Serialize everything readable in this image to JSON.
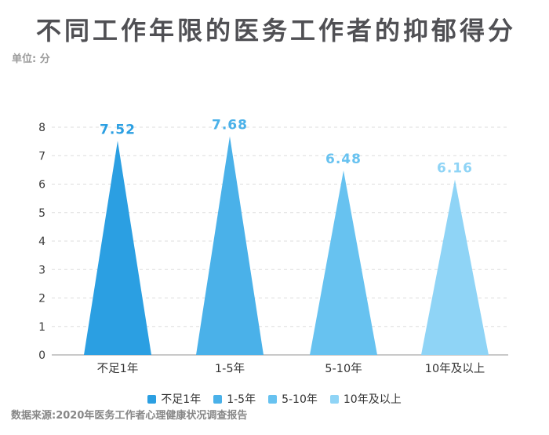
{
  "header": {
    "title": "不同工作年限的医务工作者的抑郁得分",
    "unit_label": "单位: 分"
  },
  "chart_data": {
    "type": "bar",
    "bar_shape": "triangle",
    "title": "不同工作年限的医务工作者的抑郁得分",
    "unit": "分",
    "categories": [
      "不足1年",
      "1-5年",
      "5-10年",
      "10年及以上"
    ],
    "values": [
      7.52,
      7.68,
      6.48,
      6.16
    ],
    "colors": [
      "#2B9FE2",
      "#4AB1E9",
      "#67C2F0",
      "#8FD4F6"
    ],
    "xlabel": "",
    "ylabel": "",
    "ylim": [
      0,
      8
    ],
    "ytick_step": 1,
    "yticks": [
      0,
      1,
      2,
      3,
      4,
      5,
      6,
      7,
      8
    ],
    "grid": "horizontal-dashed",
    "legend_position": "bottom",
    "value_labels_shown": true
  },
  "footer": {
    "source": "数据来源:2020年医务工作者心理健康状况调查报告"
  },
  "style": {
    "grid_color": "#dddddd",
    "axis_line_color": "#c9c9c9",
    "tick_label_color": "#3a3a3a",
    "title_color": "#505054",
    "muted_text_color": "#9b9b9b"
  }
}
